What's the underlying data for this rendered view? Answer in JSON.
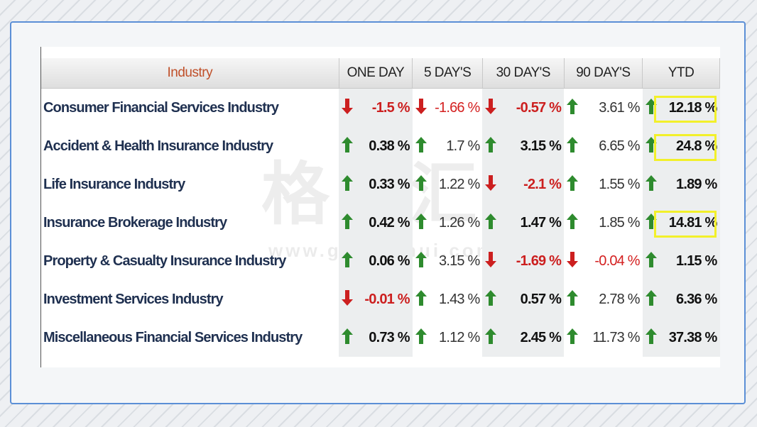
{
  "columns": [
    "Industry",
    "ONE DAY",
    "5 DAY'S",
    "30 DAY'S",
    "90 DAY'S",
    "YTD"
  ],
  "watermark": {
    "text": "格隆汇",
    "url": "www.gelonghui.com"
  },
  "rows": [
    {
      "name": "Consumer Financial Services Industry",
      "values": [
        {
          "text": "-1.5 %",
          "dir": "down",
          "style": "neg-bold"
        },
        {
          "text": "-1.66 %",
          "dir": "down",
          "style": "neg"
        },
        {
          "text": "-0.57 %",
          "dir": "down",
          "style": "neg-bold"
        },
        {
          "text": "3.61 %",
          "dir": "up",
          "style": "norm"
        },
        {
          "text": "12.18 %",
          "dir": "up",
          "style": "bold"
        }
      ],
      "highlight": true
    },
    {
      "name": "Accident & Health Insurance Industry",
      "values": [
        {
          "text": "0.38 %",
          "dir": "up",
          "style": "bold"
        },
        {
          "text": "1.7 %",
          "dir": "up",
          "style": "norm"
        },
        {
          "text": "3.15 %",
          "dir": "up",
          "style": "bold"
        },
        {
          "text": "6.65 %",
          "dir": "up",
          "style": "norm"
        },
        {
          "text": "24.8 %",
          "dir": "up",
          "style": "bold"
        }
      ],
      "highlight": true
    },
    {
      "name": "Life Insurance Industry",
      "values": [
        {
          "text": "0.33 %",
          "dir": "up",
          "style": "bold"
        },
        {
          "text": "1.22 %",
          "dir": "up",
          "style": "norm"
        },
        {
          "text": "-2.1 %",
          "dir": "down",
          "style": "neg-bold"
        },
        {
          "text": "1.55 %",
          "dir": "up",
          "style": "norm"
        },
        {
          "text": "1.89 %",
          "dir": "up",
          "style": "bold"
        }
      ],
      "highlight": false
    },
    {
      "name": "Insurance Brokerage Industry",
      "values": [
        {
          "text": "0.42 %",
          "dir": "up",
          "style": "bold"
        },
        {
          "text": "1.26 %",
          "dir": "up",
          "style": "norm"
        },
        {
          "text": "1.47 %",
          "dir": "up",
          "style": "bold"
        },
        {
          "text": "1.85 %",
          "dir": "up",
          "style": "norm"
        },
        {
          "text": "14.81 %",
          "dir": "up",
          "style": "bold"
        }
      ],
      "highlight": true
    },
    {
      "name": "Property & Casualty Insurance Industry",
      "values": [
        {
          "text": "0.06 %",
          "dir": "up",
          "style": "bold"
        },
        {
          "text": "3.15 %",
          "dir": "up",
          "style": "norm"
        },
        {
          "text": "-1.69 %",
          "dir": "down",
          "style": "neg-bold"
        },
        {
          "text": "-0.04 %",
          "dir": "down",
          "style": "neg"
        },
        {
          "text": "1.15 %",
          "dir": "up",
          "style": "bold"
        }
      ],
      "highlight": false
    },
    {
      "name": "Investment Services Industry",
      "values": [
        {
          "text": "-0.01 %",
          "dir": "down",
          "style": "neg-bold"
        },
        {
          "text": "1.43 %",
          "dir": "up",
          "style": "norm"
        },
        {
          "text": "0.57 %",
          "dir": "up",
          "style": "bold"
        },
        {
          "text": "2.78 %",
          "dir": "up",
          "style": "norm"
        },
        {
          "text": "6.36 %",
          "dir": "up",
          "style": "bold"
        }
      ],
      "highlight": false
    },
    {
      "name": "Miscellaneous Financial Services Industry",
      "values": [
        {
          "text": "0.73 %",
          "dir": "up",
          "style": "bold"
        },
        {
          "text": "1.12 %",
          "dir": "up",
          "style": "norm"
        },
        {
          "text": "2.45 %",
          "dir": "up",
          "style": "bold"
        },
        {
          "text": "11.73 %",
          "dir": "up",
          "style": "norm"
        },
        {
          "text": "37.38 %",
          "dir": "up",
          "style": "bold"
        }
      ],
      "highlight": false
    }
  ],
  "colors": {
    "up": "#2e8b2e",
    "down": "#cc1f1f",
    "highlight": "#f2f02a",
    "header_industry": "#c0502a"
  }
}
